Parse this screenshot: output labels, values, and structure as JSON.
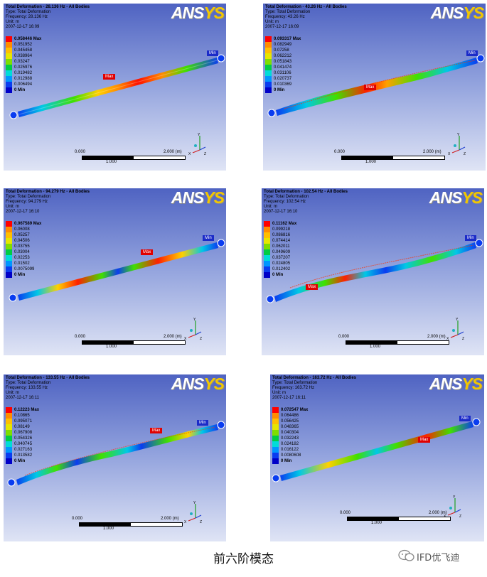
{
  "brand": {
    "logo_main": "ANS",
    "logo_tail": "YS"
  },
  "panels": [
    {
      "title": "Total Deformation - 28.136 Hz - All Bodies",
      "type": "Type: Total Deformation",
      "frequency": "Frequency: 28.136 Hz",
      "unit": "Unit: m",
      "date": "2007-12-17 16:09",
      "legend": [
        "0.058446 Max",
        "0.051952",
        "0.045458",
        "0.038964",
        "0.03247",
        "0.025976",
        "0.019482",
        "0.012988",
        "0.006494",
        "0 Min"
      ],
      "max_label": "Max",
      "min_label": "Min",
      "scale": {
        "left": "0.000",
        "right": "2.000 (m)",
        "mid": "1.000"
      }
    },
    {
      "title": "Total Deformation - 43.26 Hz - All Bodies",
      "type": "Type: Total Deformation",
      "frequency": "Frequency: 43.26 Hz",
      "unit": "Unit: m",
      "date": "2007-12-17 16:09",
      "legend": [
        "0.093317 Max",
        "0.082949",
        "0.07258",
        "0.062212",
        "0.051843",
        "0.041474",
        "0.031106",
        "0.020737",
        "0.010369",
        "0 Min"
      ],
      "max_label": "Max",
      "min_label": "Min",
      "scale": {
        "left": "0.000",
        "right": "2.000 (m)",
        "mid": "1.000"
      }
    },
    {
      "title": "Total Deformation - 94.279 Hz - All Bodies",
      "type": "Type: Total Deformation",
      "frequency": "Frequency: 94.279 Hz",
      "unit": "Unit: m",
      "date": "2007-12-17 16:10",
      "legend": [
        "0.067589 Max",
        "0.06008",
        "0.05257",
        "0.04506",
        "0.03755",
        "0.03004",
        "0.02253",
        "0.01502",
        "0.0075099",
        "0 Min"
      ],
      "max_label": "Max",
      "min_label": "Min",
      "scale": {
        "left": "0.000",
        "right": "2.000 (m)",
        "mid": "1.000"
      }
    },
    {
      "title": "Total Deformation - 102.54 Hz - All Bodies",
      "type": "Type: Total Deformation",
      "frequency": "Frequency: 102.54 Hz",
      "unit": "Unit: m",
      "date": "2007-12-17 16:10",
      "legend": [
        "0.11162 Max",
        "0.099218",
        "0.086816",
        "0.074414",
        "0.062011",
        "0.049609",
        "0.037207",
        "0.024805",
        "0.012402",
        "0 Min"
      ],
      "max_label": "Max",
      "min_label": "Min",
      "scale": {
        "left": "0.000",
        "right": "2.000 (m)",
        "mid": "1.000"
      }
    },
    {
      "title": "Total Deformation - 133.55 Hz - All Bodies",
      "type": "Type: Total Deformation",
      "frequency": "Frequency: 133.55 Hz",
      "unit": "Unit: m",
      "date": "2007-12-17 16:11",
      "legend": [
        "0.12223 Max",
        "0.10865",
        "0.095071",
        "0.08149",
        "0.067908",
        "0.054326",
        "0.040745",
        "0.027163",
        "0.013582",
        "0 Min"
      ],
      "max_label": "Max",
      "min_label": "Min",
      "scale": {
        "left": "0.000",
        "right": "2.000 (m)",
        "mid": "1.000"
      }
    },
    {
      "title": "Total Deformation - 163.72 Hz - All Bodies",
      "type": "Type: Total Deformation",
      "frequency": "Frequency: 163.72 Hz",
      "unit": "Unit: m",
      "date": "2007-12-17 16:11",
      "legend": [
        "0.072547 Max",
        "0.064486",
        "0.056425",
        "0.048365",
        "0.040304",
        "0.032243",
        "0.024182",
        "0.016122",
        "0.0080608",
        "0 Min"
      ],
      "max_label": "Max",
      "min_label": "Min",
      "scale": {
        "left": "0.000",
        "right": "2.000 (m)",
        "mid": "1.000"
      }
    }
  ],
  "legend_colors": [
    "#ff0000",
    "#ff8c00",
    "#ffbf00",
    "#e6e600",
    "#7fdd00",
    "#00cc44",
    "#00dcd8",
    "#0096ff",
    "#0a3cf0",
    "#0000c8"
  ],
  "axis_labels": {
    "x": "X",
    "y": "Y",
    "z": "Z"
  },
  "caption": "前六阶模态",
  "watermark": "IFD优飞迪"
}
